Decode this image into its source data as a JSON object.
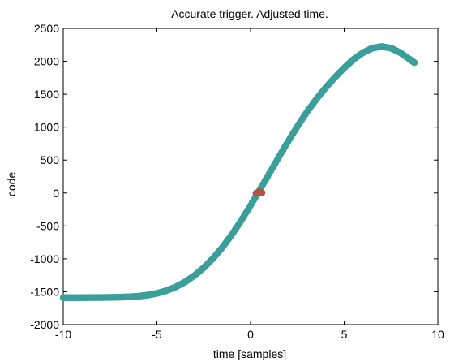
{
  "chart_data": {
    "type": "scatter",
    "title": "Accurate trigger. Adjusted time.",
    "xlabel": "time [samples]",
    "ylabel": "code",
    "xlim": [
      -10,
      10
    ],
    "ylim": [
      -2000,
      2500
    ],
    "xticks": [
      -10,
      -5,
      0,
      5,
      10
    ],
    "yticks": [
      -2000,
      -1500,
      -1000,
      -500,
      0,
      500,
      1000,
      1500,
      2000,
      2500
    ],
    "xtick_labels": [
      "-10",
      "-5",
      "0",
      "5",
      "10"
    ],
    "ytick_labels": [
      "-2000",
      "-1500",
      "-1000",
      "-500",
      "0",
      "500",
      "1000",
      "1500",
      "2000",
      "2500"
    ],
    "grid": false,
    "colors": {
      "teal": "#3a9e9a",
      "red": "#b5504a"
    },
    "series": [
      {
        "marker_color": "#3a9e9a",
        "x": [
          -10.0,
          -9.5,
          -9.0,
          -8.5,
          -8.0,
          -7.5,
          -7.0,
          -6.5,
          -6.0,
          -5.5,
          -5.0,
          -4.5,
          -4.0,
          -3.5,
          -3.0,
          -2.5,
          -2.0,
          -1.5,
          -1.0,
          -0.5,
          0.0,
          0.5,
          1.0,
          1.5,
          2.0,
          2.5,
          3.0,
          3.5,
          4.0,
          4.5,
          5.0,
          5.5,
          6.0,
          6.5,
          7.0,
          7.5,
          8.0,
          8.5,
          8.75
        ],
        "y": [
          -1590,
          -1590,
          -1590,
          -1588,
          -1588,
          -1586,
          -1583,
          -1578,
          -1568,
          -1552,
          -1525,
          -1485,
          -1428,
          -1352,
          -1255,
          -1136,
          -993,
          -825,
          -633,
          -420,
          -190,
          50,
          295,
          540,
          780,
          1010,
          1225,
          1420,
          1595,
          1755,
          1900,
          2030,
          2130,
          2200,
          2225,
          2200,
          2130,
          2030,
          1980
        ]
      },
      {
        "marker_color": "#b5504a",
        "x": [
          0.3,
          0.4,
          0.5,
          0.6
        ],
        "y": [
          -5,
          10,
          15,
          5
        ]
      }
    ]
  }
}
